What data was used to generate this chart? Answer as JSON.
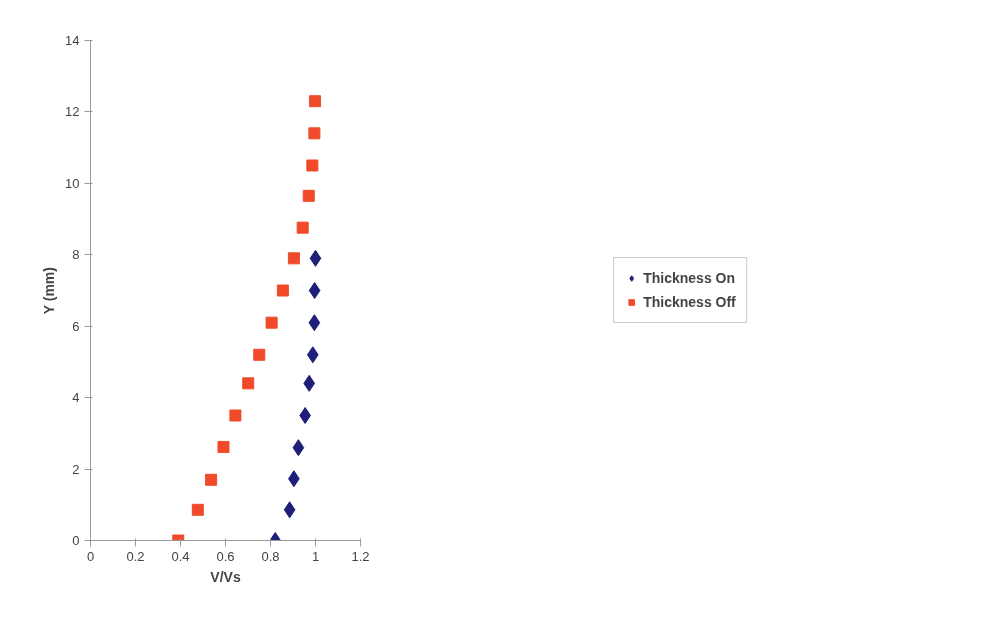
{
  "chart_data": {
    "type": "scatter",
    "xlabel": "V/Vs",
    "ylabel": "Y (mm)",
    "xlim": [
      0,
      1.2
    ],
    "ylim": [
      0,
      14
    ],
    "xticks": [
      0,
      0.2,
      0.4,
      0.6,
      0.8,
      1,
      1.2
    ],
    "yticks": [
      0,
      2,
      4,
      6,
      8,
      10,
      12,
      14
    ],
    "grid": false,
    "legend": "right",
    "series": [
      {
        "name": "Thickness On",
        "color": "#1f1f7a",
        "marker": "diamond",
        "x": [
          0.821,
          0.885,
          0.904,
          0.924,
          0.954,
          0.972,
          0.988,
          0.995,
          0.996,
          1.0
        ],
        "values": [
          0,
          0.86,
          1.73,
          2.6,
          3.5,
          4.4,
          5.2,
          6.1,
          7.0,
          7.9
        ]
      },
      {
        "name": "Thickness Off",
        "color": "#f04a2a",
        "marker": "square",
        "x": [
          0.39,
          0.477,
          0.536,
          0.591,
          0.644,
          0.701,
          0.75,
          0.805,
          0.855,
          0.904,
          0.943,
          0.97,
          0.986,
          0.995,
          0.998
        ],
        "values": [
          0,
          0.86,
          1.7,
          2.62,
          3.5,
          4.4,
          5.2,
          6.1,
          7.0,
          7.9,
          8.76,
          9.65,
          10.5,
          11.4,
          12.3
        ]
      }
    ]
  }
}
